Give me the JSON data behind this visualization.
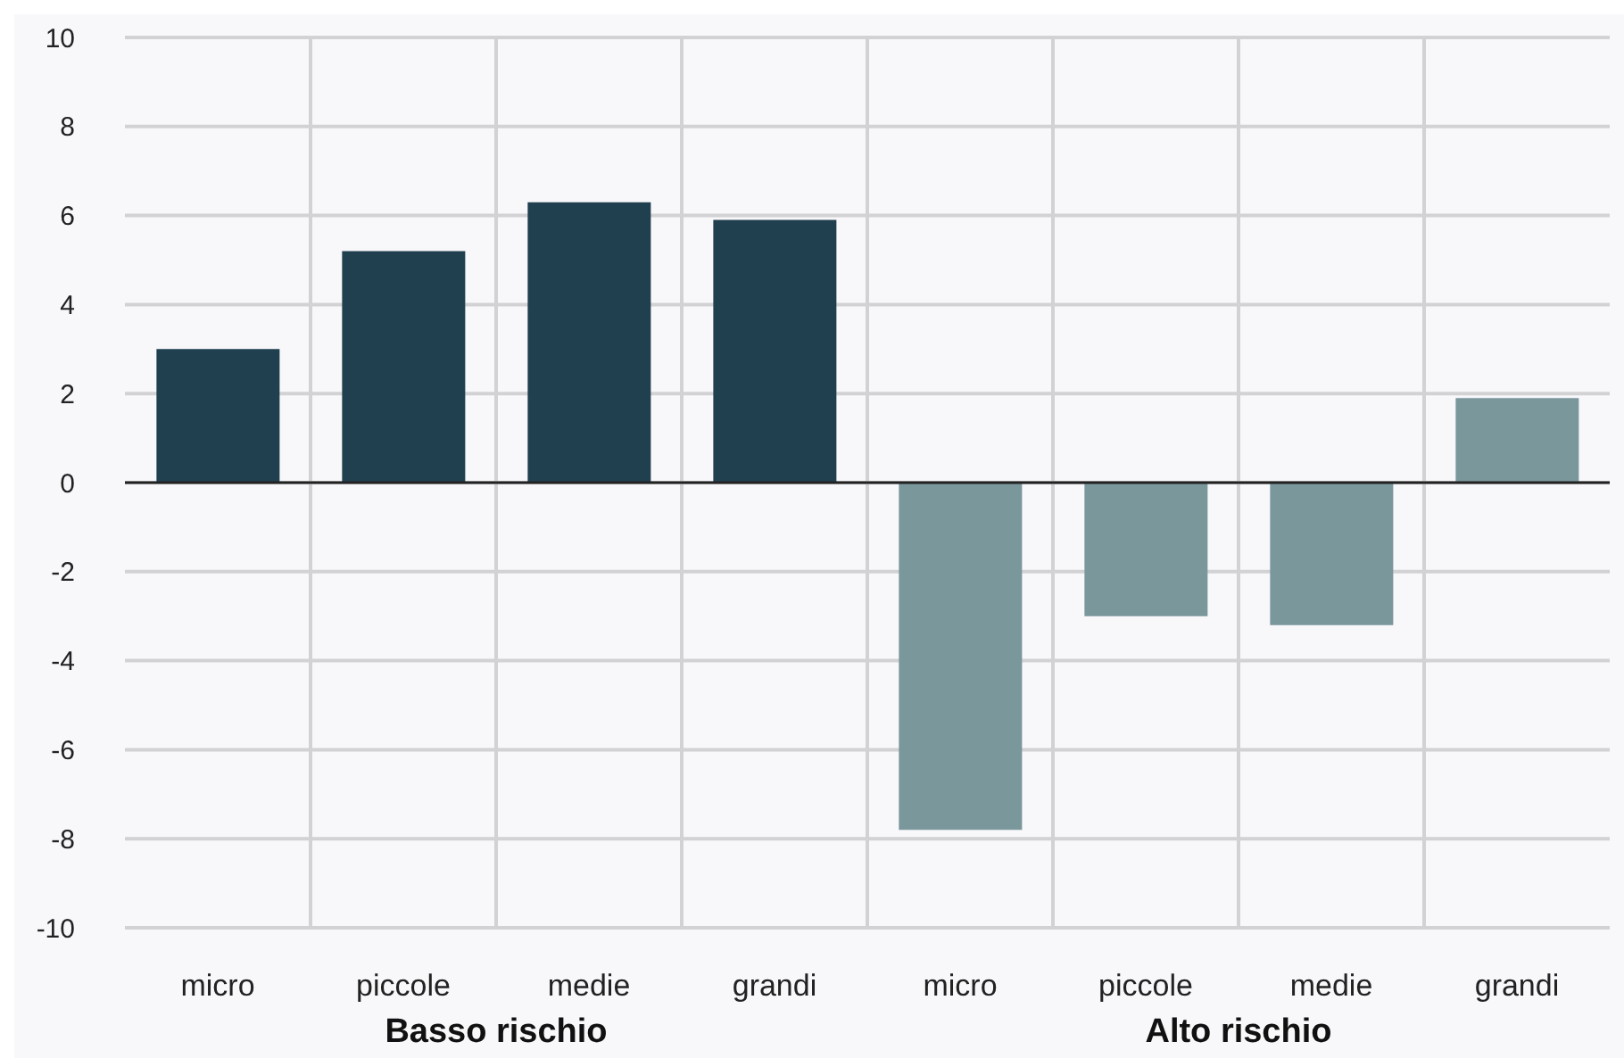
{
  "chart_data": {
    "type": "bar",
    "categories": [
      "micro",
      "piccole",
      "medie",
      "grandi",
      "micro",
      "piccole",
      "medie",
      "grandi"
    ],
    "values": [
      3.0,
      5.2,
      6.3,
      5.9,
      -7.8,
      -3.0,
      -3.2,
      1.9
    ],
    "colors": [
      "#21404f",
      "#21404f",
      "#21404f",
      "#21404f",
      "#7a979c",
      "#7a979c",
      "#7a979c",
      "#7a979c"
    ],
    "ylim": [
      -10,
      10
    ],
    "yticks": [
      -10,
      -8,
      -6,
      -4,
      -2,
      0,
      2,
      4,
      6,
      8,
      10
    ],
    "grid": true,
    "ref_lines": [
      {
        "axis": "y",
        "value": 0,
        "color": "#222222"
      }
    ],
    "annotations": [
      "Basso rischio",
      "Alto rischio"
    ]
  }
}
